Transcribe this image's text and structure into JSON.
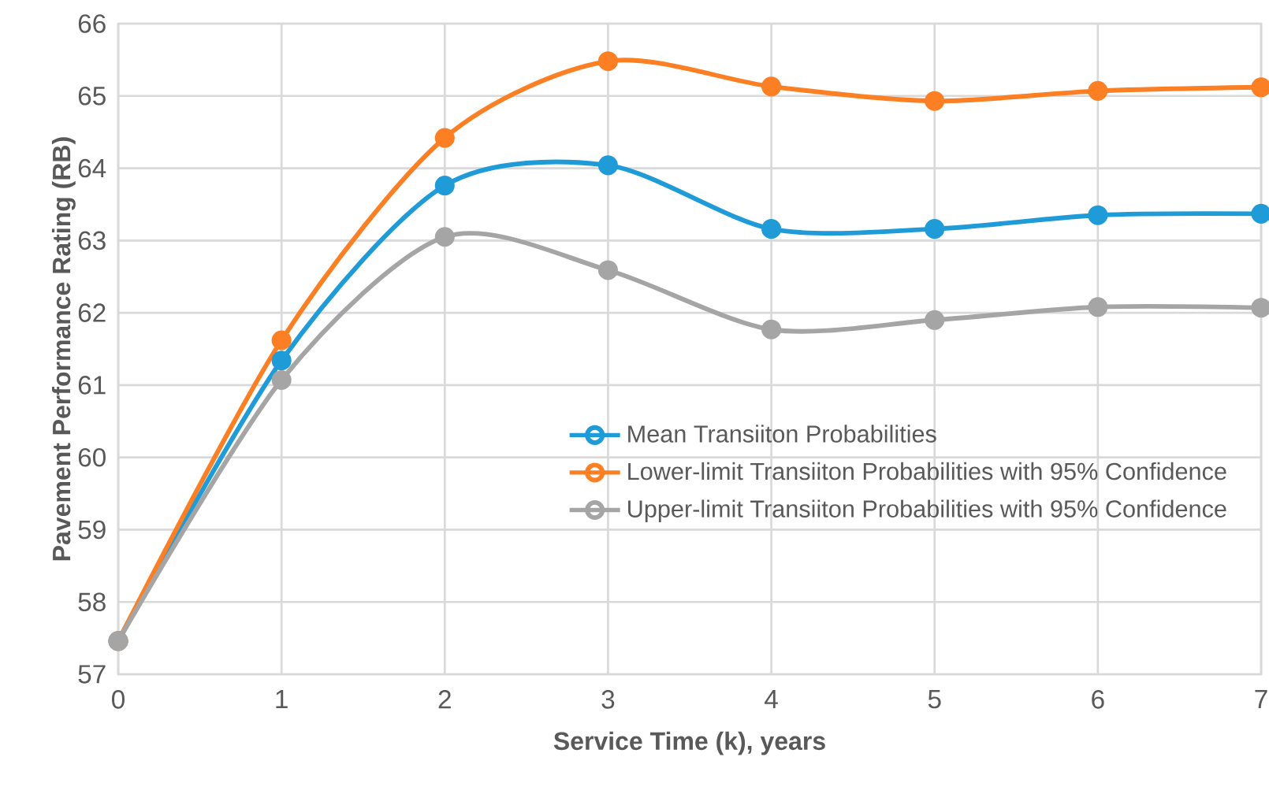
{
  "chart_data": {
    "type": "line",
    "xlabel": "Service Time (k), years",
    "ylabel": "Pavement Performance Rating (RB)",
    "x": [
      0,
      1,
      2,
      3,
      4,
      5,
      6,
      7
    ],
    "series": [
      {
        "name": "Mean Transiiton Probabilities",
        "color": "#1f9bd7",
        "values": [
          57.46,
          61.34,
          63.76,
          64.04,
          63.16,
          63.16,
          63.35,
          63.37
        ]
      },
      {
        "name": "Lower-limit Transiiton Probabilities with 95% Confidence",
        "color": "#fd7f23",
        "values": [
          57.46,
          61.62,
          64.42,
          65.48,
          65.13,
          64.93,
          65.07,
          65.12
        ]
      },
      {
        "name": "Upper-limit Transiiton Probabilities with 95% Confidence",
        "color": "#a5a5a5",
        "values": [
          57.46,
          61.07,
          63.05,
          62.59,
          61.77,
          61.9,
          62.08,
          62.07
        ]
      }
    ],
    "xlim": [
      0,
      7
    ],
    "ylim": [
      57,
      66
    ],
    "xticks": [
      0,
      1,
      2,
      3,
      4,
      5,
      6,
      7
    ],
    "yticks": [
      57,
      58,
      59,
      60,
      61,
      62,
      63,
      64,
      65,
      66
    ],
    "grid": true,
    "legend": "right",
    "marker": "circle",
    "line_style": "solid"
  }
}
